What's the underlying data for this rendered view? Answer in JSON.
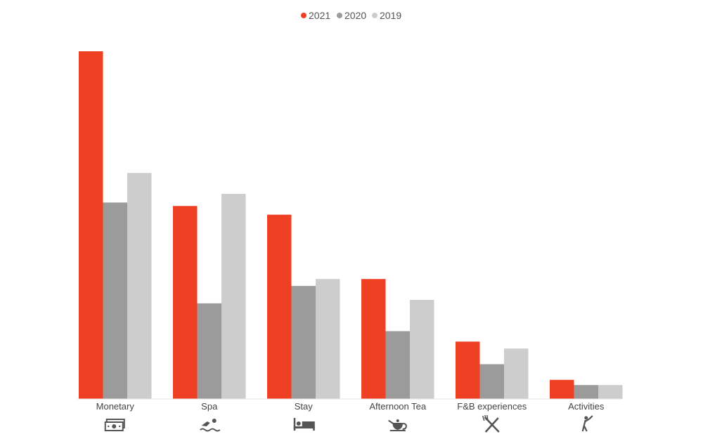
{
  "chart_data": {
    "type": "bar",
    "categories": [
      "Monetary",
      "Spa",
      "Stay",
      "Afternoon Tea",
      "F&B experiences",
      "Activities"
    ],
    "category_icons": [
      "money-icon",
      "swimming-icon",
      "bed-icon",
      "teapot-icon",
      "fork-knife-icon",
      "golf-icon"
    ],
    "series": [
      {
        "name": "2021",
        "color": "#F04023",
        "values": [
          100,
          55.5,
          53,
          34.5,
          16.5,
          5.5
        ]
      },
      {
        "name": "2020",
        "color": "#9B9B9B",
        "values": [
          56.5,
          27.5,
          32.5,
          19.5,
          10,
          4
        ]
      },
      {
        "name": "2019",
        "color": "#CDCDCD",
        "values": [
          65,
          59,
          34.5,
          28.5,
          14.5,
          4
        ]
      }
    ],
    "ylim": [
      0,
      100
    ],
    "grid": false,
    "legend_position": "top-center"
  }
}
